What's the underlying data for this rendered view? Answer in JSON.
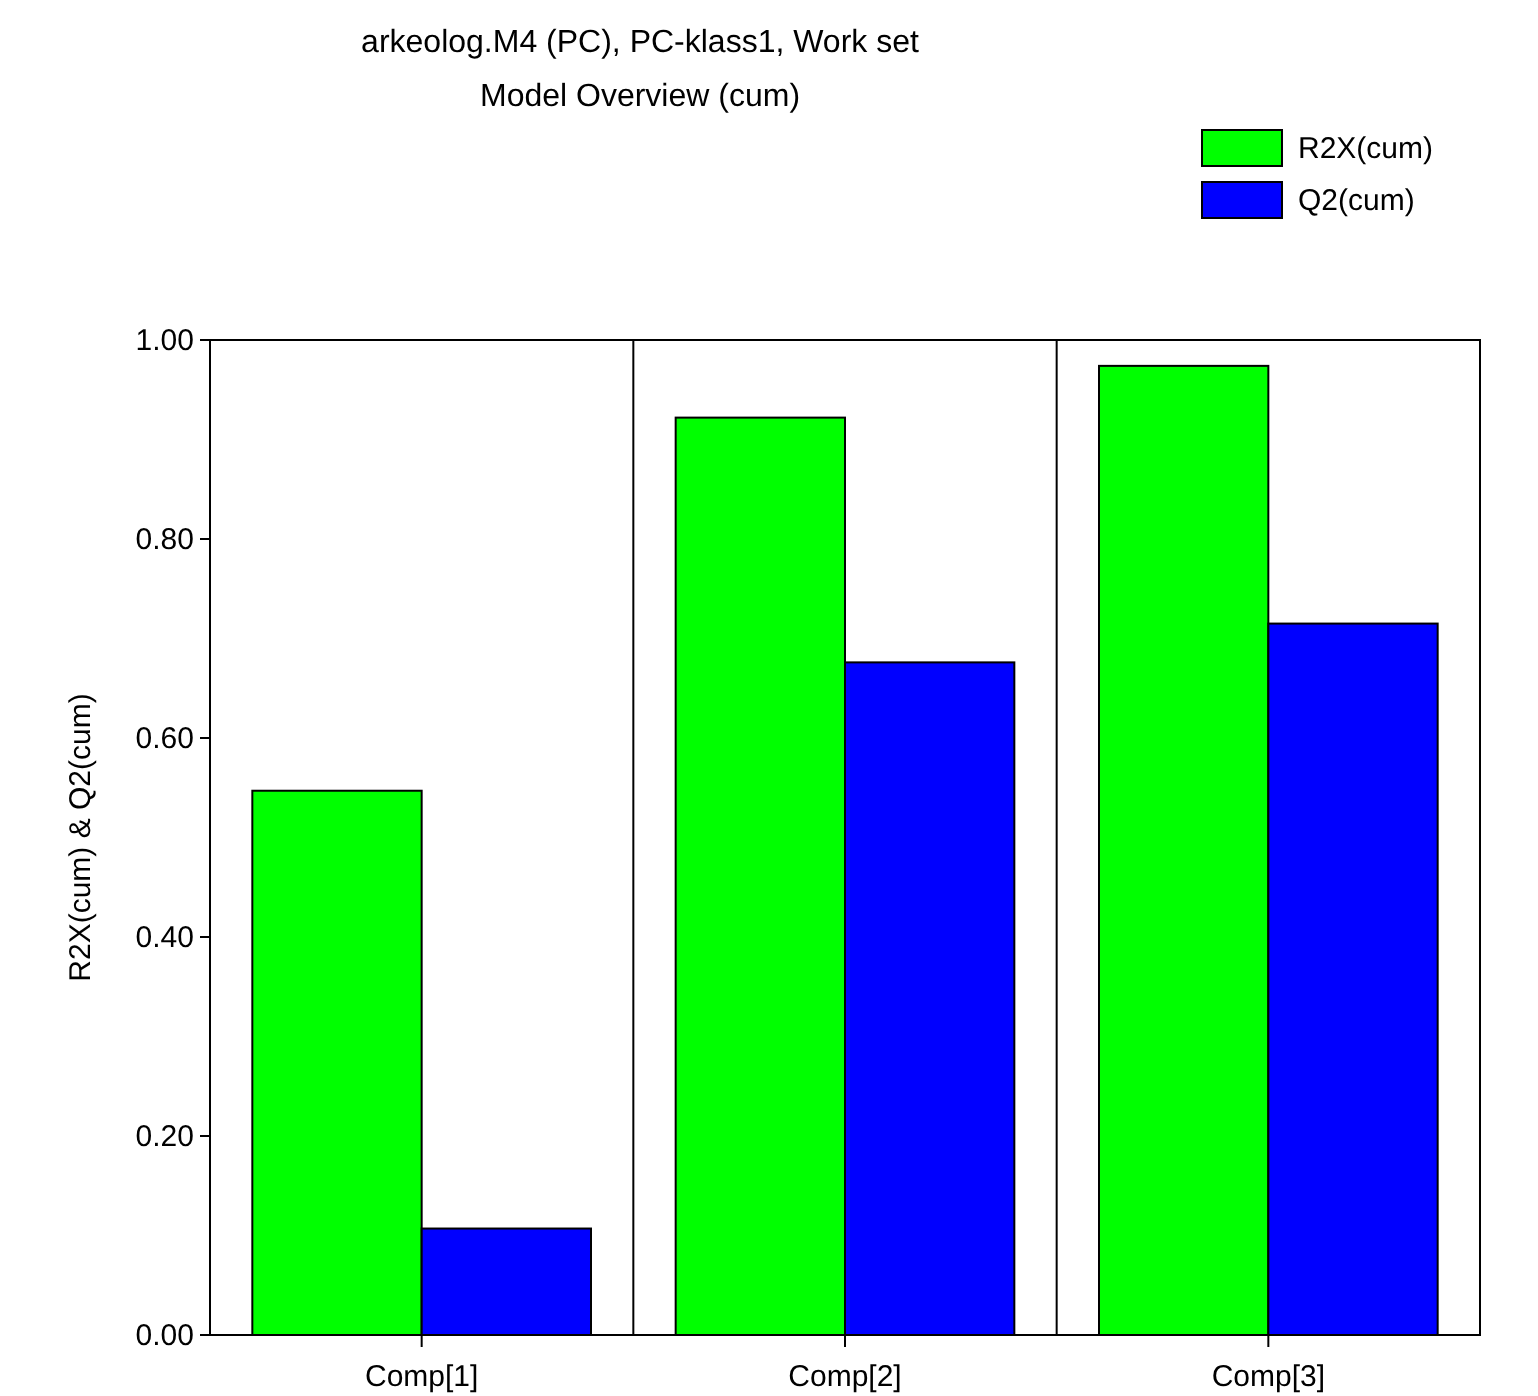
{
  "chart_data": {
    "type": "bar",
    "title": "arkeolog.M4 (PC), PC-klass1, Work set",
    "subtitle": "Model Overview (cum)",
    "ylabel": "R2X(cum) & Q2(cum)",
    "categories": [
      "Comp[1]",
      "Comp[2]",
      "Comp[3]"
    ],
    "series": [
      {
        "name": "R2X(cum)",
        "color": "#00ff00",
        "values": [
          0.547,
          0.922,
          0.974
        ]
      },
      {
        "name": "Q2(cum)",
        "color": "#0000ff",
        "values": [
          0.107,
          0.676,
          0.715
        ]
      }
    ],
    "ylim": [
      0,
      1
    ],
    "yticks": [
      {
        "value": 0,
        "label": "0.00"
      },
      {
        "value": 0.2,
        "label": "0.20"
      },
      {
        "value": 0.4,
        "label": "0.40"
      },
      {
        "value": 0.6,
        "label": "0.60"
      },
      {
        "value": 0.8,
        "label": "0.80"
      },
      {
        "value": 1,
        "label": "1.00"
      }
    ],
    "grid": "x",
    "legend": "top right"
  }
}
